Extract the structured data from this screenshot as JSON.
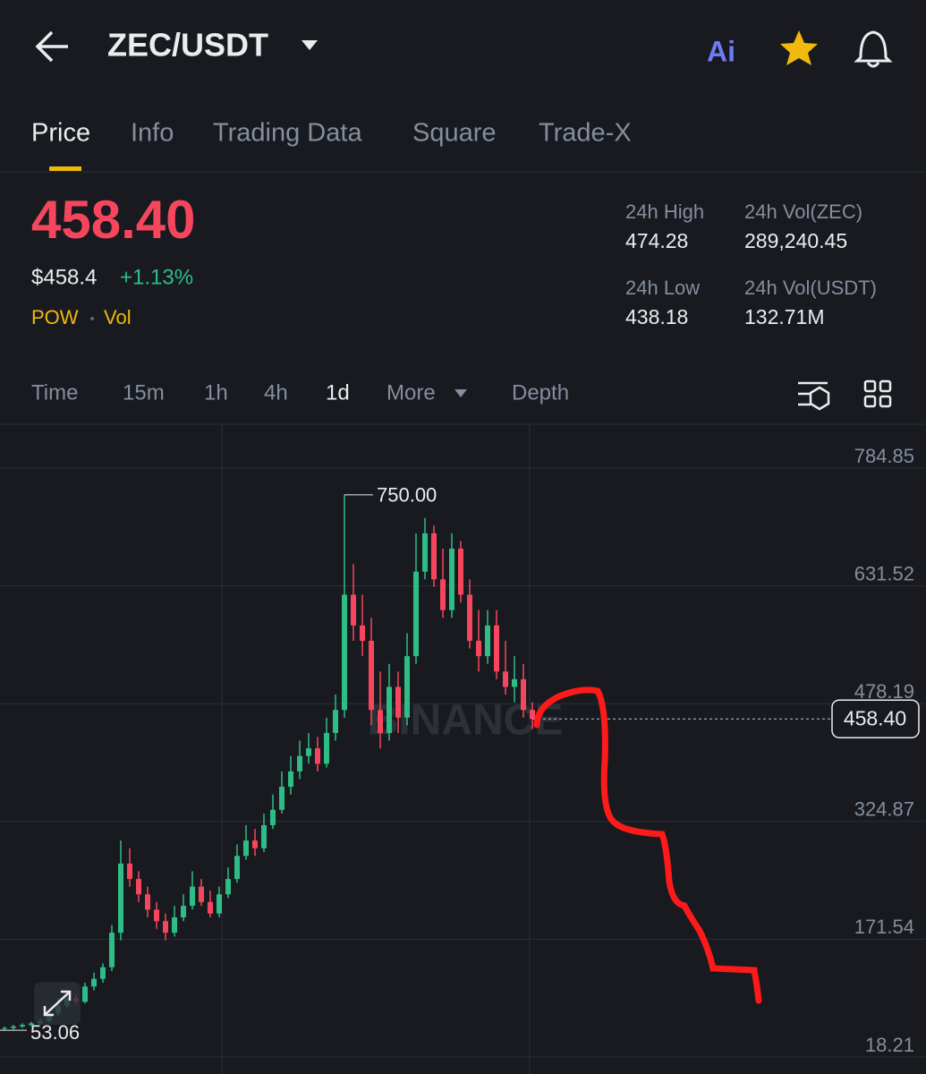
{
  "header": {
    "pair": "ZEC/USDT"
  },
  "tabs": [
    "Price",
    "Info",
    "Trading Data",
    "Square",
    "Trade-X"
  ],
  "ticker": {
    "price": "458.40",
    "usd_price": "$458.4",
    "change": "+1.13%",
    "tags": [
      "POW",
      "Vol"
    ],
    "stats": [
      {
        "label": "24h High",
        "value": "474.28"
      },
      {
        "label": "24h Vol(ZEC)",
        "value": "289,240.45"
      },
      {
        "label": "24h Low",
        "value": "438.18"
      },
      {
        "label": "24h Vol(USDT)",
        "value": "132.71M"
      }
    ]
  },
  "intervals": [
    "Time",
    "15m",
    "1h",
    "4h",
    "1d"
  ],
  "more": "More",
  "depth": "Depth",
  "chart_data": {
    "type": "candlestick",
    "watermark": "BINANCE",
    "ylim": [
      18.21,
      784.85
    ],
    "yticks": [
      784.85,
      631.52,
      478.19,
      324.87,
      171.54,
      18.21
    ],
    "last_price": {
      "value": 458.4,
      "label": "458.40"
    },
    "high_mark": {
      "value": 750,
      "label": "750.00"
    },
    "low_mark": {
      "value": 53.06,
      "label": "53.06"
    },
    "up_color": "#2ebd85",
    "down_color": "#f6465d",
    "open": [
      55,
      56,
      58,
      60,
      62,
      65,
      75,
      85,
      95,
      90,
      110,
      120,
      135,
      180,
      270,
      250,
      230,
      210,
      195,
      180,
      200,
      215,
      240,
      220,
      205,
      230,
      250,
      280,
      300,
      290,
      320,
      340,
      370,
      390,
      410,
      420,
      400,
      440,
      470,
      620,
      580,
      560,
      470,
      440,
      500,
      460,
      540,
      650,
      700,
      640,
      600,
      680,
      620,
      560,
      540,
      580,
      520,
      500,
      510,
      470
    ],
    "high": [
      58,
      60,
      62,
      64,
      68,
      80,
      95,
      100,
      100,
      115,
      128,
      140,
      190,
      300,
      290,
      260,
      240,
      220,
      205,
      215,
      230,
      260,
      250,
      235,
      240,
      265,
      295,
      320,
      315,
      335,
      360,
      390,
      410,
      430,
      440,
      435,
      460,
      490,
      750,
      660,
      620,
      590,
      520,
      530,
      520,
      570,
      700,
      720,
      710,
      680,
      700,
      690,
      640,
      600,
      600,
      600,
      560,
      540,
      530,
      480
    ],
    "low": [
      53.06,
      54,
      56,
      58,
      60,
      63,
      72,
      82,
      85,
      88,
      105,
      115,
      130,
      170,
      240,
      220,
      200,
      185,
      170,
      175,
      195,
      210,
      215,
      200,
      200,
      225,
      245,
      275,
      280,
      285,
      315,
      335,
      360,
      380,
      400,
      390,
      395,
      430,
      460,
      560,
      540,
      450,
      420,
      430,
      440,
      450,
      530,
      640,
      630,
      590,
      590,
      610,
      550,
      520,
      530,
      510,
      490,
      480,
      460,
      445
    ],
    "close": [
      56,
      58,
      60,
      62,
      65,
      75,
      85,
      95,
      90,
      110,
      120,
      135,
      180,
      270,
      250,
      230,
      210,
      195,
      180,
      200,
      215,
      240,
      220,
      205,
      230,
      250,
      280,
      300,
      290,
      320,
      340,
      370,
      390,
      410,
      420,
      400,
      440,
      470,
      620,
      580,
      560,
      470,
      440,
      500,
      460,
      540,
      650,
      700,
      640,
      600,
      680,
      620,
      560,
      540,
      580,
      520,
      500,
      510,
      470,
      458.4
    ]
  }
}
